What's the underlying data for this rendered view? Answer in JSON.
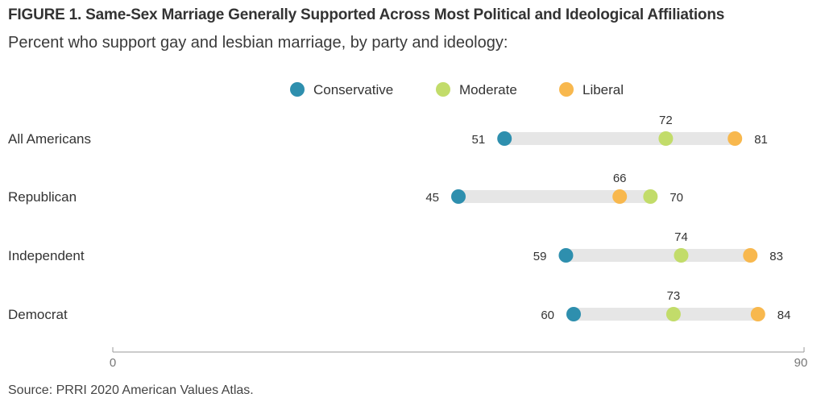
{
  "header": {
    "title": "FIGURE 1.  Same-Sex Marriage Generally Supported Across Most Political and Ideological Affiliations",
    "subtitle": "Percent who support gay and lesbian marriage, by party and ideology:"
  },
  "footer": {
    "source": "Source: PRRI 2020 American Values Atlas."
  },
  "chart_data": {
    "type": "dot-range",
    "title": "FIGURE 1.  Same-Sex Marriage Generally Supported Across Most Political and Ideological Affiliations",
    "subtitle": "Percent who support gay and lesbian marriage, by party and ideology:",
    "categories": [
      "All Americans",
      "Republican",
      "Independent",
      "Democrat"
    ],
    "series": [
      {
        "name": "Conservative",
        "color": "#2e8fae",
        "values": [
          51,
          45,
          59,
          60
        ]
      },
      {
        "name": "Moderate",
        "color": "#c2dc6a",
        "values": [
          72,
          70,
          74,
          73
        ]
      },
      {
        "name": "Liberal",
        "color": "#f8b84e",
        "values": [
          81,
          66,
          83,
          84
        ]
      }
    ],
    "xlim": [
      0,
      90
    ],
    "x_ticks": [
      "0",
      "90"
    ],
    "legend_position": "top-center",
    "grid": false,
    "range_bar_color": "#e6e6e6"
  }
}
